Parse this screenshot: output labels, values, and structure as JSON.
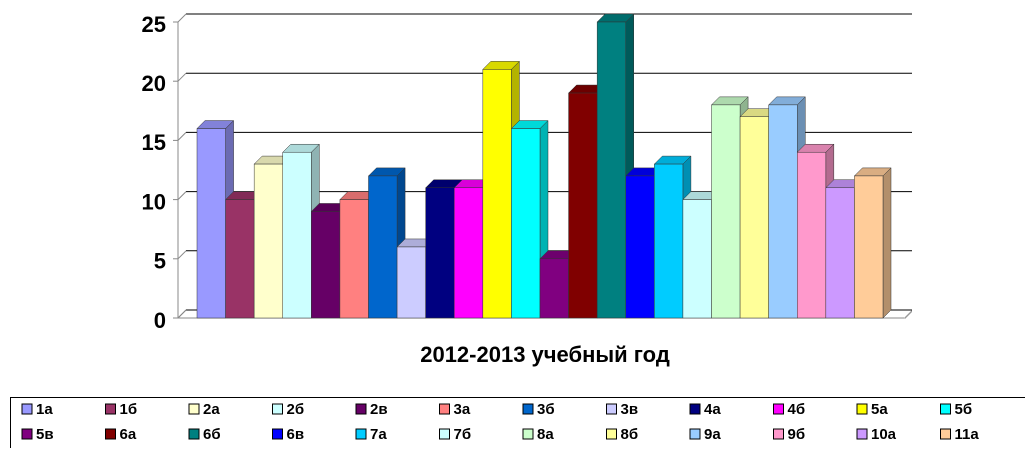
{
  "chart_data": {
    "type": "bar",
    "xlabel": "2012-2013 учебный год",
    "categories": [
      null
    ],
    "ylim": [
      0,
      25
    ],
    "yticks": [
      0,
      5,
      10,
      15,
      20,
      25
    ],
    "grid": true,
    "legend": "bottom",
    "series": [
      {
        "name": "1а",
        "color": "#9999ff",
        "values": [
          16
        ]
      },
      {
        "name": "1б",
        "color": "#993366",
        "values": [
          10
        ]
      },
      {
        "name": "2а",
        "color": "#ffffcc",
        "values": [
          13
        ]
      },
      {
        "name": "2б",
        "color": "#ccffff",
        "values": [
          14
        ]
      },
      {
        "name": "2в",
        "color": "#660066",
        "values": [
          9
        ]
      },
      {
        "name": "3а",
        "color": "#ff8080",
        "values": [
          10
        ]
      },
      {
        "name": "3б",
        "color": "#0066cc",
        "values": [
          12
        ]
      },
      {
        "name": "3в",
        "color": "#ccccff",
        "values": [
          6
        ]
      },
      {
        "name": "4а",
        "color": "#000080",
        "values": [
          11
        ]
      },
      {
        "name": "4б",
        "color": "#ff00ff",
        "values": [
          11
        ]
      },
      {
        "name": "5а",
        "color": "#ffff00",
        "values": [
          21
        ]
      },
      {
        "name": "5б",
        "color": "#00ffff",
        "values": [
          16
        ]
      },
      {
        "name": "5в",
        "color": "#800080",
        "values": [
          5
        ]
      },
      {
        "name": "6а",
        "color": "#800000",
        "values": [
          19
        ]
      },
      {
        "name": "6б",
        "color": "#008080",
        "values": [
          25
        ]
      },
      {
        "name": "6в",
        "color": "#0000ff",
        "values": [
          12
        ]
      },
      {
        "name": "7а",
        "color": "#00ccff",
        "values": [
          13
        ]
      },
      {
        "name": "7б",
        "color": "#ccffff",
        "values": [
          10
        ]
      },
      {
        "name": "8а",
        "color": "#ccffcc",
        "values": [
          18
        ]
      },
      {
        "name": "8б",
        "color": "#ffff99",
        "values": [
          17
        ]
      },
      {
        "name": "9а",
        "color": "#99ccff",
        "values": [
          18
        ]
      },
      {
        "name": "9б",
        "color": "#ff99cc",
        "values": [
          14
        ]
      },
      {
        "name": "10а",
        "color": "#cc99ff",
        "values": [
          11
        ]
      },
      {
        "name": "11а",
        "color": "#ffcc99",
        "values": [
          12
        ]
      }
    ]
  }
}
